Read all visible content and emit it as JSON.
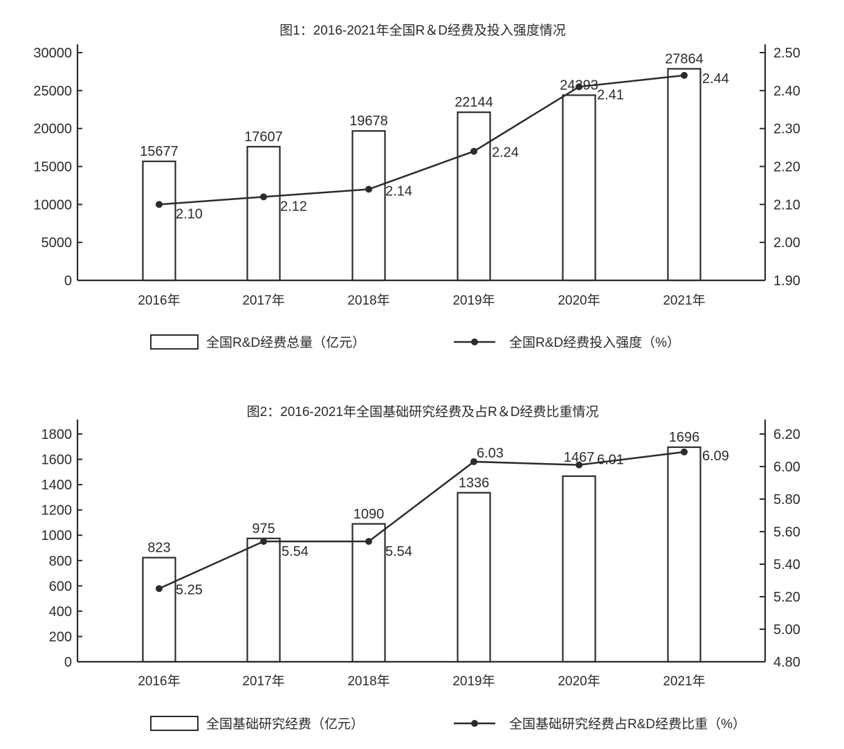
{
  "chart_data": [
    {
      "type": "bar+line",
      "title": "图1：2016-2021年全国R＆D经费及投入强度情况",
      "categories": [
        "2016年",
        "2017年",
        "2018年",
        "2019年",
        "2020年",
        "2021年"
      ],
      "series": [
        {
          "name": "全国R&D经费总量（亿元）",
          "type": "bar",
          "axis": "left",
          "values": [
            15677,
            17607,
            19678,
            22144,
            24393,
            27864
          ]
        },
        {
          "name": "全国R&D经费投入强度（%）",
          "type": "line",
          "axis": "right",
          "values": [
            2.1,
            2.12,
            2.14,
            2.24,
            2.41,
            2.44
          ]
        }
      ],
      "bar_labels": [
        "15677",
        "17607",
        "19678",
        "22144",
        "24393",
        "27864"
      ],
      "line_labels": [
        "2.10",
        "2.12",
        "2.14",
        "2.24",
        "2.41",
        "2.44"
      ],
      "left_axis": {
        "ylim": [
          0,
          30000
        ],
        "ticks": [
          "30000",
          "25000",
          "20000",
          "15000",
          "10000",
          "5000",
          "0"
        ]
      },
      "right_axis": {
        "ylim": [
          1.9,
          2.5
        ],
        "ticks": [
          "2.50",
          "2.40",
          "2.30",
          "2.20",
          "2.10",
          "2.00",
          "1.90"
        ]
      },
      "legend": {
        "position": "bottom",
        "items": [
          "全国R&D经费总量（亿元）",
          "全国R&D经费投入强度（%）"
        ]
      },
      "grid": false
    },
    {
      "type": "bar+line",
      "title": "图2：2016-2021年全国基础研究经费及占R＆D经费比重情况",
      "categories": [
        "2016年",
        "2017年",
        "2018年",
        "2019年",
        "2020年",
        "2021年"
      ],
      "series": [
        {
          "name": "全国基础研究经费（亿元）",
          "type": "bar",
          "axis": "left",
          "values": [
            823,
            975,
            1090,
            1336,
            1467,
            1696
          ]
        },
        {
          "name": "全国基础研究经费占R&D经费比重（%）",
          "type": "line",
          "axis": "right",
          "values": [
            5.25,
            5.54,
            5.54,
            6.03,
            6.01,
            6.09
          ]
        }
      ],
      "bar_labels": [
        "823",
        "975",
        "1090",
        "1336",
        "1467",
        "1696"
      ],
      "line_labels": [
        "5.25",
        "5.54",
        "5.54",
        "6.03",
        "6.01",
        "6.09"
      ],
      "left_axis": {
        "ylim": [
          0,
          1800
        ],
        "ticks": [
          "1800",
          "1600",
          "1400",
          "1200",
          "1000",
          "800",
          "600",
          "400",
          "200",
          "0"
        ]
      },
      "right_axis": {
        "ylim": [
          4.8,
          6.2
        ],
        "ticks": [
          "6.20",
          "6.00",
          "5.80",
          "5.60",
          "5.40",
          "5.20",
          "5.00",
          "4.80"
        ]
      },
      "legend": {
        "position": "bottom",
        "items": [
          "全国基础研究经费（亿元）",
          "全国基础研究经费占R&D经费比重（%）"
        ]
      },
      "grid": false
    }
  ],
  "colors": {
    "ink": "#2b2b2b",
    "background": "#ffffff"
  }
}
